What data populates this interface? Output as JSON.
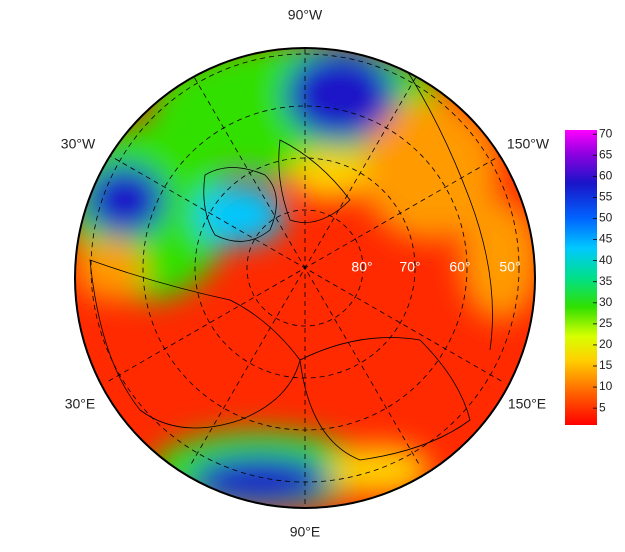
{
  "map": {
    "longitude_labels": [
      "90°W",
      "30°W",
      "150°W",
      "30°E",
      "150°E",
      "90°E"
    ],
    "latitude_labels": [
      "80°",
      "70°",
      "60°",
      "50°"
    ],
    "colorbar": {
      "range": [
        1,
        71
      ],
      "ticks": [
        5,
        10,
        15,
        20,
        25,
        30,
        35,
        40,
        45,
        50,
        55,
        60,
        65,
        70
      ]
    }
  }
}
